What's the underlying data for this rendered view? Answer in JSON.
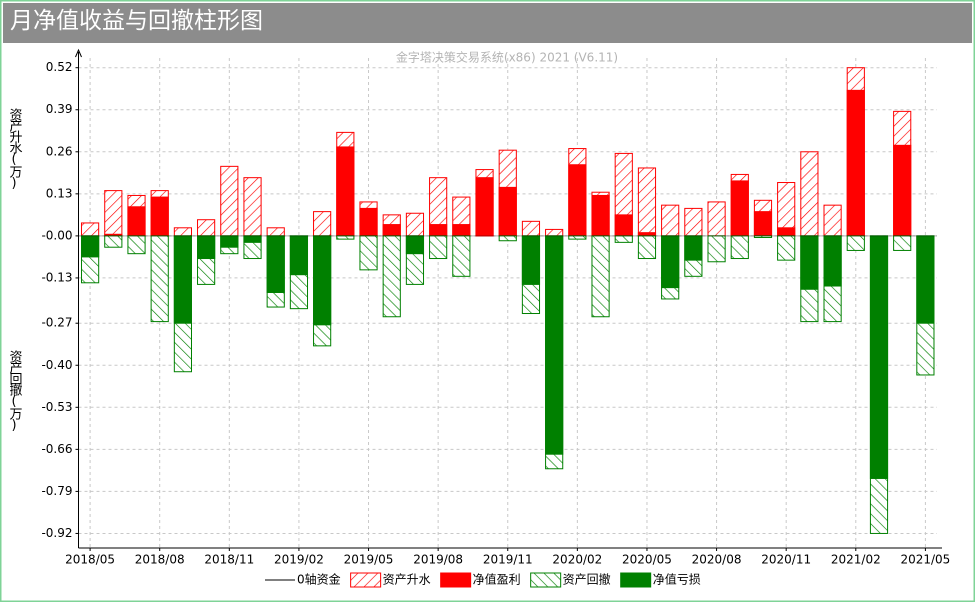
{
  "chart_data": {
    "type": "bar",
    "title": "月净值收益与回撤柱形图",
    "subtitle": "金字塔决策交易系统(x86) 2021 (V6.11)",
    "y_label_top": "资产升水(万)",
    "y_label_bottom": "资产回撤(万)",
    "categories": [
      "2018/05",
      null,
      null,
      "2018/08",
      null,
      null,
      "2018/11",
      null,
      null,
      "2019/02",
      null,
      null,
      "2019/05",
      null,
      null,
      "2019/08",
      null,
      null,
      "2019/11",
      null,
      null,
      "2020/02",
      null,
      null,
      "2020/05",
      null,
      null,
      "2020/08",
      null,
      null,
      "2020/11",
      null,
      null,
      "2021/02",
      null,
      null,
      "2021/05"
    ],
    "baseline": {
      "name": "0轴资金",
      "color": "#000000",
      "value": 0
    },
    "series": [
      {
        "name": "资产升水",
        "color": "#ff0000",
        "style": "hatch",
        "values": [
          0.04,
          0.14,
          0.125,
          0.14,
          0.025,
          0.05,
          0.215,
          0.18,
          0.025,
          0,
          0.075,
          0.32,
          0.105,
          0.065,
          0.07,
          0.18,
          0.12,
          0.205,
          0.265,
          0.045,
          0.02,
          0.27,
          0.135,
          0.255,
          0.21,
          0.095,
          0.085,
          0.105,
          0.19,
          0.11,
          0.165,
          0.26,
          0.095,
          0.52,
          0,
          0.385,
          0
        ]
      },
      {
        "name": "净值盈利",
        "color": "#ff0000",
        "style": "solid",
        "values": [
          0,
          0.005,
          0.09,
          0.12,
          0,
          0,
          0,
          0,
          0,
          0,
          0,
          0.275,
          0.085,
          0.035,
          0,
          0.035,
          0.035,
          0.18,
          0.15,
          0,
          0,
          0.22,
          0.125,
          0.065,
          0.01,
          0,
          0,
          0,
          0.17,
          0.075,
          0.025,
          0,
          0,
          0.45,
          0,
          0.28,
          0
        ]
      },
      {
        "name": "资产回撤",
        "color": "#008000",
        "style": "hatch",
        "values": [
          -0.145,
          -0.035,
          -0.055,
          -0.265,
          -0.42,
          -0.15,
          -0.055,
          -0.07,
          -0.22,
          -0.225,
          -0.34,
          -0.01,
          -0.105,
          -0.25,
          -0.15,
          -0.07,
          -0.125,
          0,
          -0.015,
          -0.24,
          -0.72,
          -0.01,
          -0.25,
          -0.02,
          -0.07,
          -0.195,
          -0.125,
          -0.08,
          -0.07,
          -0.005,
          -0.075,
          -0.265,
          -0.265,
          -0.045,
          -0.92,
          -0.045,
          -0.43
        ]
      },
      {
        "name": "净值亏损",
        "color": "#008000",
        "style": "solid",
        "values": [
          -0.065,
          0,
          0,
          0,
          -0.27,
          -0.07,
          -0.035,
          -0.02,
          -0.175,
          -0.12,
          -0.275,
          0,
          0,
          0,
          -0.055,
          0,
          0,
          0,
          0,
          -0.15,
          -0.675,
          0,
          0,
          0,
          0,
          -0.16,
          -0.075,
          0,
          0,
          0,
          0,
          -0.165,
          -0.155,
          0,
          -0.75,
          0,
          -0.27
        ]
      }
    ],
    "ylim": [
      -0.965,
      0.55
    ],
    "yticks": [
      0.52,
      0.39,
      0.26,
      0.13,
      {
        "value": 0,
        "label": "-0.00"
      },
      -0.13,
      -0.27,
      {
        "value": -0.4,
        "label": "-0.40"
      },
      -0.53,
      -0.66,
      -0.79,
      -0.92
    ],
    "grid": true
  }
}
